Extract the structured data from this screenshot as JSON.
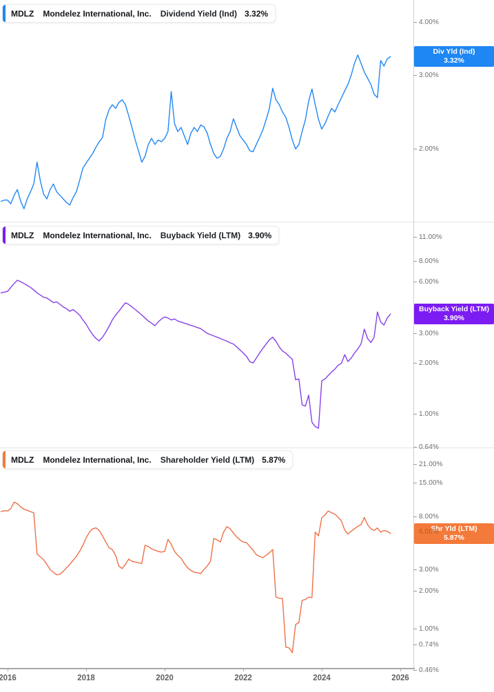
{
  "chart_data": {
    "type": "line",
    "x_unit": "year",
    "x_domain": [
      2015.807,
      2026.333
    ],
    "x_start": 2015.8333,
    "x_step_years": 0.0833333,
    "x_ticks": [
      {
        "label": "2016",
        "year": 2016
      },
      {
        "label": "2018",
        "year": 2018
      },
      {
        "label": "2020",
        "year": 2020
      },
      {
        "label": "2022",
        "year": 2022
      },
      {
        "label": "2024",
        "year": 2024
      },
      {
        "label": "2026",
        "year": 2026
      }
    ],
    "grid": "off",
    "legend_position": "top-left-per-pane",
    "panes": [
      {
        "legend": {
          "ticker": "MDLZ",
          "company": "Mondelez International, Inc.",
          "metric": "Dividend Yield (Ind)",
          "value": "3.32%"
        },
        "label_box": {
          "line1": "Div Yld (Ind)",
          "line2": "3.32%"
        },
        "scale": "log",
        "y_log_range": [
          1.341,
          4.531
        ],
        "line_color": "#1f87f3",
        "accent_color": "#1f87f3",
        "box_color": "#1f87f3",
        "y_ticks": [
          {
            "label": "4.00%",
            "value": 4.0
          },
          {
            "label": "3.00%",
            "value": 3.0
          },
          {
            "label": "2.00%",
            "value": 2.0
          }
        ],
        "values": [
          1.5,
          1.51,
          1.51,
          1.48,
          1.55,
          1.6,
          1.5,
          1.44,
          1.52,
          1.58,
          1.65,
          1.86,
          1.68,
          1.56,
          1.52,
          1.6,
          1.65,
          1.58,
          1.55,
          1.52,
          1.49,
          1.47,
          1.53,
          1.58,
          1.68,
          1.8,
          1.85,
          1.9,
          1.95,
          2.02,
          2.08,
          2.13,
          2.35,
          2.48,
          2.55,
          2.5,
          2.58,
          2.62,
          2.55,
          2.4,
          2.25,
          2.1,
          1.98,
          1.86,
          1.92,
          2.05,
          2.12,
          2.05,
          2.1,
          2.08,
          2.12,
          2.2,
          2.74,
          2.3,
          2.2,
          2.25,
          2.15,
          2.05,
          2.18,
          2.25,
          2.2,
          2.28,
          2.26,
          2.18,
          2.05,
          1.95,
          1.9,
          1.92,
          2.0,
          2.12,
          2.2,
          2.36,
          2.25,
          2.15,
          2.1,
          2.05,
          1.98,
          1.97,
          2.05,
          2.13,
          2.22,
          2.35,
          2.5,
          2.79,
          2.62,
          2.55,
          2.45,
          2.38,
          2.25,
          2.1,
          2.0,
          2.05,
          2.2,
          2.35,
          2.6,
          2.78,
          2.55,
          2.35,
          2.23,
          2.3,
          2.4,
          2.5,
          2.45,
          2.55,
          2.65,
          2.75,
          2.85,
          3.0,
          3.2,
          3.35,
          3.2,
          3.05,
          2.95,
          2.85,
          2.7,
          2.65,
          3.25,
          3.15,
          3.28,
          3.32
        ]
      },
      {
        "legend": {
          "ticker": "MDLZ",
          "company": "Mondelez International, Inc.",
          "metric": "Buyback Yield (LTM)",
          "value": "3.90%"
        },
        "label_box": {
          "line1": "Buyback Yield (LTM)",
          "line2": "3.90%"
        },
        "scale": "log",
        "y_log_range": [
          0.639,
          13.63
        ],
        "line_color": "#873fe8",
        "accent_color": "#7c1cf2",
        "box_color": "#7c1cf2",
        "y_ticks": [
          {
            "label": "11.00%",
            "value": 11.0
          },
          {
            "label": "8.00%",
            "value": 8.0
          },
          {
            "label": "6.00%",
            "value": 6.0
          },
          {
            "label": "3.00%",
            "value": 3.0
          },
          {
            "label": "2.00%",
            "value": 2.0
          },
          {
            "label": "1.00%",
            "value": 1.0
          },
          {
            "label": "0.64%",
            "value": 0.64
          }
        ],
        "values": [
          5.2,
          5.25,
          5.3,
          5.6,
          5.9,
          6.17,
          6.05,
          5.9,
          5.75,
          5.6,
          5.4,
          5.2,
          5.05,
          4.9,
          4.85,
          4.7,
          4.55,
          4.6,
          4.45,
          4.3,
          4.2,
          4.05,
          4.15,
          4.0,
          3.85,
          3.6,
          3.4,
          3.15,
          2.95,
          2.8,
          2.71,
          2.85,
          3.05,
          3.3,
          3.6,
          3.85,
          4.05,
          4.3,
          4.54,
          4.45,
          4.3,
          4.15,
          4.0,
          3.85,
          3.7,
          3.55,
          3.45,
          3.33,
          3.5,
          3.65,
          3.75,
          3.7,
          3.6,
          3.65,
          3.55,
          3.5,
          3.45,
          3.4,
          3.35,
          3.3,
          3.25,
          3.2,
          3.1,
          3.0,
          2.95,
          2.9,
          2.85,
          2.8,
          2.75,
          2.7,
          2.64,
          2.6,
          2.5,
          2.4,
          2.3,
          2.2,
          2.05,
          2.01,
          2.15,
          2.3,
          2.45,
          2.6,
          2.75,
          2.85,
          2.7,
          2.5,
          2.36,
          2.3,
          2.2,
          2.11,
          1.6,
          1.62,
          1.14,
          1.12,
          1.3,
          0.9,
          0.85,
          0.83,
          1.58,
          1.62,
          1.7,
          1.78,
          1.85,
          1.95,
          2.0,
          2.25,
          2.05,
          2.15,
          2.3,
          2.43,
          2.6,
          3.18,
          2.8,
          2.65,
          2.85,
          4.01,
          3.5,
          3.36,
          3.7,
          3.9
        ]
      },
      {
        "legend": {
          "ticker": "MDLZ",
          "company": "Mondelez International, Inc.",
          "metric": "Shareholder Yield (LTM)",
          "value": "5.87%"
        },
        "label_box": {
          "line1": "Shr Yld (LTM)",
          "line2": "5.87%"
        },
        "scale": "log",
        "y_log_range": [
          0.4824,
          28.91
        ],
        "line_color": "#ee7046",
        "accent_color": "#f47a3b",
        "box_color": "#f47a3b",
        "y_ticks": [
          {
            "label": "21.00%",
            "value": 21.0
          },
          {
            "label": "15.00%",
            "value": 15.0
          },
          {
            "label": "8.00%",
            "value": 8.0
          },
          {
            "label": "6.00%",
            "value": 6.0
          },
          {
            "label": "3.00%",
            "value": 3.0
          },
          {
            "label": "2.00%",
            "value": 2.0
          },
          {
            "label": "1.00%",
            "value": 1.0
          },
          {
            "label": "0.74%",
            "value": 0.74
          },
          {
            "label": "0.46%",
            "value": 0.46
          }
        ],
        "values": [
          8.8,
          8.95,
          8.9,
          9.3,
          10.5,
          10.2,
          9.6,
          9.2,
          9.0,
          8.8,
          8.6,
          4.0,
          3.8,
          3.6,
          3.3,
          3.0,
          2.85,
          2.72,
          2.75,
          2.9,
          3.1,
          3.3,
          3.55,
          3.83,
          4.2,
          4.7,
          5.4,
          6.0,
          6.4,
          6.5,
          6.2,
          5.6,
          5.0,
          4.5,
          4.35,
          3.9,
          3.2,
          3.05,
          3.3,
          3.64,
          3.5,
          3.45,
          3.4,
          3.36,
          4.7,
          4.6,
          4.4,
          4.3,
          4.2,
          4.15,
          4.2,
          5.25,
          4.8,
          4.2,
          3.9,
          3.7,
          3.36,
          3.1,
          2.95,
          2.85,
          2.83,
          2.78,
          3.0,
          3.2,
          3.5,
          5.35,
          5.2,
          5.0,
          6.0,
          6.65,
          6.4,
          5.9,
          5.5,
          5.2,
          5.0,
          4.94,
          4.6,
          4.3,
          3.95,
          3.83,
          3.74,
          3.9,
          4.1,
          4.35,
          1.8,
          1.76,
          1.75,
          0.71,
          0.7,
          0.64,
          1.08,
          1.12,
          1.69,
          1.72,
          1.8,
          1.78,
          6.0,
          5.6,
          7.85,
          8.3,
          8.9,
          8.6,
          8.4,
          7.9,
          7.4,
          6.25,
          5.8,
          6.1,
          6.4,
          6.7,
          6.9,
          7.9,
          6.9,
          6.4,
          6.2,
          6.5,
          6.0,
          6.2,
          6.1,
          5.87
        ]
      }
    ]
  }
}
